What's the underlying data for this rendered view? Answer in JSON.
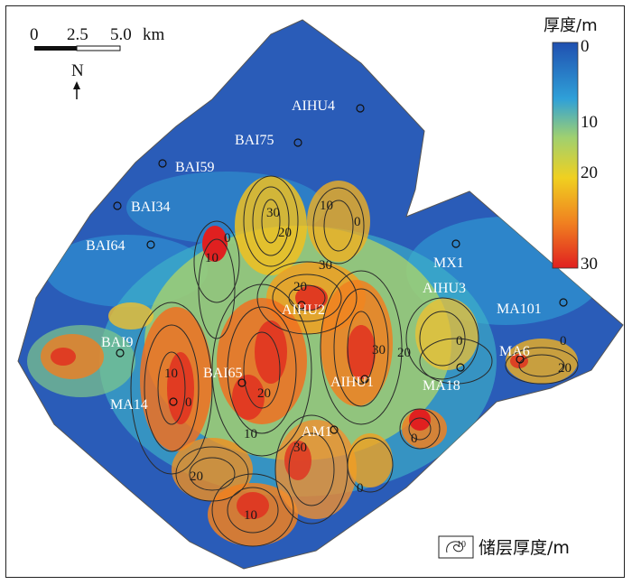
{
  "scale_bar": {
    "ticks": [
      "0",
      "2.5",
      "5.0"
    ],
    "unit": "km"
  },
  "north_label": "N",
  "colorbar": {
    "title": "厚度/m",
    "ticks": [
      "0",
      "10",
      "20",
      "30"
    ],
    "colors": [
      "#2050b0",
      "#2fa0d8",
      "#9fd070",
      "#f0d020",
      "#f08020",
      "#e02020"
    ]
  },
  "legend": {
    "label": "储层厚度/m"
  },
  "wells": [
    {
      "name": "AIHU4"
    },
    {
      "name": "BAI75"
    },
    {
      "name": "BAI59"
    },
    {
      "name": "BAI34"
    },
    {
      "name": "BAI64"
    },
    {
      "name": "MX1"
    },
    {
      "name": "AIHU3"
    },
    {
      "name": "MA101"
    },
    {
      "name": "AIHU2"
    },
    {
      "name": "BAI9"
    },
    {
      "name": "MA6"
    },
    {
      "name": "BAI65"
    },
    {
      "name": "AIHU1"
    },
    {
      "name": "MA18"
    },
    {
      "name": "MA14"
    },
    {
      "name": "AM1"
    }
  ],
  "contour_labels": [
    "30",
    "20",
    "10",
    "0",
    "30",
    "20",
    "10",
    "0",
    "30",
    "20",
    "10",
    "0",
    "20",
    "10",
    "20",
    "30",
    "10",
    "0",
    "0",
    "0",
    "0",
    "20"
  ]
}
